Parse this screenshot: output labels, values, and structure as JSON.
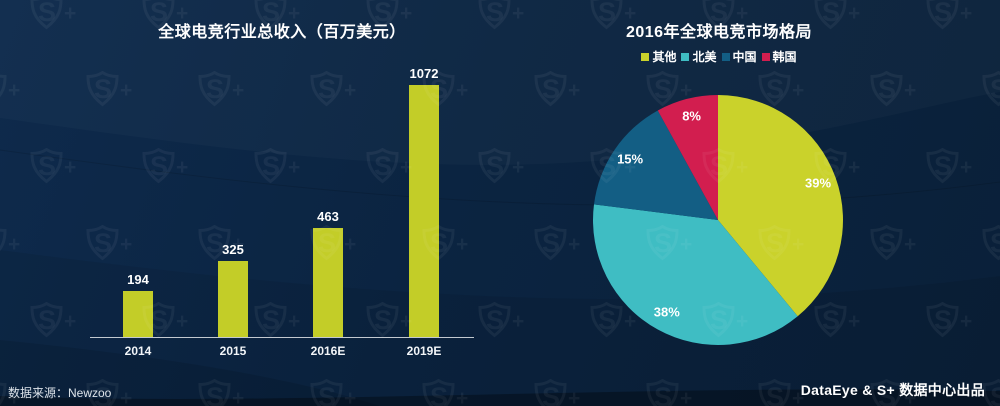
{
  "footer": {
    "source_label": "数据来源：Newzoo",
    "credit": "DataEye & S+ 数据中心出品"
  },
  "colors": {
    "background": "#0b2340",
    "axis_line": "#c3c9d0",
    "text": "#ffffff",
    "watermark": "rgba(255,255,255,0.055)"
  },
  "watermark_icon": "s-plus-shield",
  "chart_data": [
    {
      "type": "bar",
      "title": "全球电竞行业总收入（百万美元）",
      "categories": [
        "2014",
        "2015",
        "2016E",
        "2019E"
      ],
      "values": [
        194,
        325,
        463,
        1072
      ],
      "bar_color": "#c3cd28",
      "value_labels": [
        194,
        325,
        463,
        1072
      ],
      "xlabel": "",
      "ylabel": "",
      "ylim": [
        0,
        1200
      ],
      "grid": false,
      "legend_position": "none"
    },
    {
      "type": "pie",
      "title": "2016年全球电竞市场格局",
      "legend_position": "top",
      "direction": "clockwise",
      "start_angle_deg": 0,
      "slices": [
        {
          "label": "其他",
          "value": 39,
          "unit": "%",
          "color": "#cad22b"
        },
        {
          "label": "北美",
          "value": 38,
          "unit": "%",
          "color": "#3fbdc3"
        },
        {
          "label": "中国",
          "value": 15,
          "unit": "%",
          "color": "#135e84"
        },
        {
          "label": "韩国",
          "value": 8,
          "unit": "%",
          "color": "#d21e4f"
        }
      ]
    }
  ]
}
